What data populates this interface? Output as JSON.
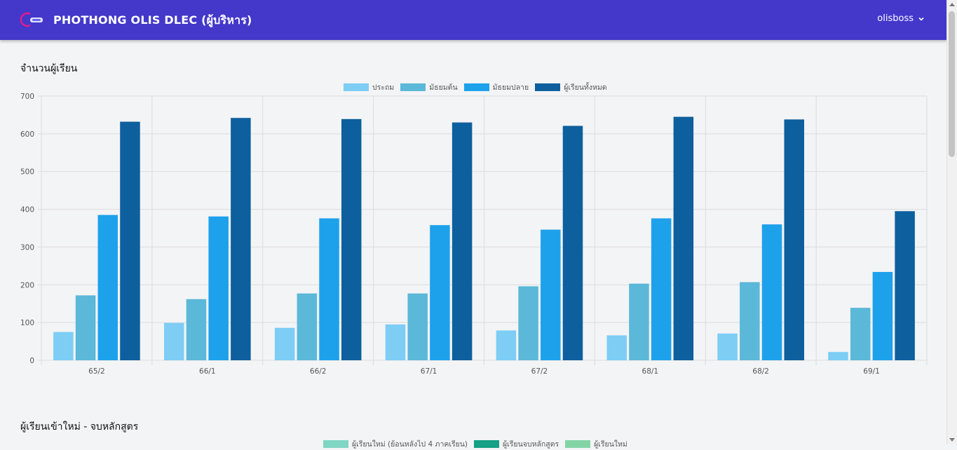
{
  "header": {
    "title": "PHOTHONG OLIS DLEC (ผู้บริหาร)",
    "user": "olisboss"
  },
  "icons": {
    "logo": "brand-logo-icon",
    "user_menu": "chevron-down-icon"
  },
  "colors": {
    "header": "#4338ca",
    "primary": "#7dcdf5",
    "lower_secondary": "#5bb8d8",
    "upper_secondary": "#1ea1eb",
    "total": "#0e5f9d"
  },
  "sections": [
    {
      "title": "จำนวนผู้เรียน"
    },
    {
      "title": "ผู้เรียนเข้าใหม่ - จบหลักสูตร"
    }
  ],
  "legend2": [
    {
      "label": "ผู้เรียนใหม่ (ย้อนหลังไป 4 ภาคเรียน)",
      "color": "#7fd6c2"
    },
    {
      "label": "ผู้เรียนจบหลักสูตร",
      "color": "#16a085"
    },
    {
      "label": "ผู้เรียนใหม่",
      "color": "#82d4a5"
    }
  ],
  "chart_data": {
    "type": "bar",
    "title": "จำนวนผู้เรียน",
    "categories": [
      "65/2",
      "66/1",
      "66/2",
      "67/1",
      "67/2",
      "68/1",
      "68/2",
      "69/1"
    ],
    "series": [
      {
        "name": "ประถม",
        "color": "#7dcdf5",
        "values": [
          75,
          99,
          86,
          95,
          79,
          66,
          71,
          22
        ]
      },
      {
        "name": "มัธยมต้น",
        "color": "#5bb8d8",
        "values": [
          172,
          162,
          177,
          177,
          196,
          203,
          207,
          139
        ]
      },
      {
        "name": "มัธยมปลาย",
        "color": "#1ea1eb",
        "values": [
          385,
          381,
          376,
          358,
          346,
          376,
          360,
          234
        ]
      },
      {
        "name": "ผู้เรียนทั้งหมด",
        "color": "#0e5f9d",
        "values": [
          632,
          642,
          639,
          630,
          621,
          645,
          638,
          395
        ]
      }
    ],
    "yticks": [
      "0",
      "100",
      "200",
      "300",
      "400",
      "500",
      "600",
      "700"
    ],
    "ylim": [
      0,
      700
    ],
    "grid": true,
    "legend": "top-center"
  }
}
